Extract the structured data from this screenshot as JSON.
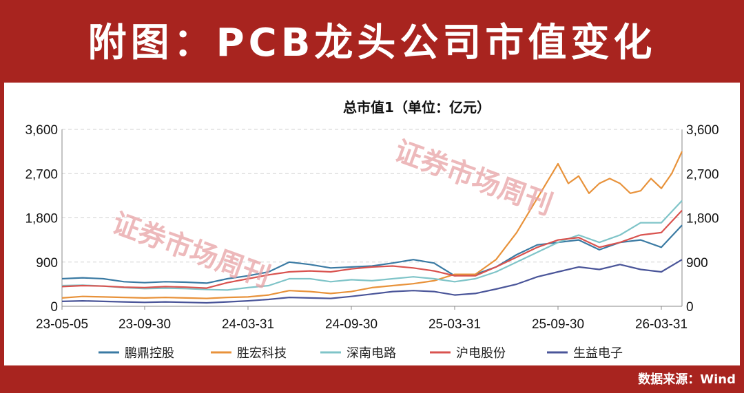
{
  "banner": {
    "title": "附图：PCB龙头公司市值变化"
  },
  "source": "数据来源：Wind",
  "watermark": "证券市场周刊",
  "colors": {
    "banner": "#a8241f",
    "鹏鼎控股": "#3a7aa3",
    "胜宏科技": "#e8923a",
    "深南电路": "#7fc4c8",
    "沪电股份": "#d9534f",
    "生益电子": "#4a5599"
  },
  "chart_data": {
    "type": "line",
    "title": "总市值1（单位：亿元）",
    "x_ticks": [
      "23-05-05",
      "23-09-30",
      "24-03-31",
      "24-09-30",
      "25-03-31",
      "25-09-30",
      "26-03-31"
    ],
    "x_tick_positions": [
      0,
      16,
      36,
      56,
      76,
      96,
      116
    ],
    "x_range": [
      0,
      120
    ],
    "y_ticks": [
      "0",
      "900",
      "1,800",
      "2,700",
      "3,600"
    ],
    "ylim": [
      0,
      3600
    ],
    "grid": "horizontal-dashed",
    "legend_position": "bottom",
    "series": [
      {
        "name": "鹏鼎控股",
        "x": [
          0,
          4,
          8,
          12,
          16,
          20,
          24,
          28,
          32,
          36,
          40,
          44,
          48,
          52,
          56,
          60,
          64,
          68,
          72,
          76,
          80,
          84,
          88,
          92,
          96,
          100,
          104,
          108,
          112,
          116,
          120
        ],
        "y": [
          560,
          580,
          560,
          500,
          480,
          500,
          490,
          470,
          560,
          620,
          700,
          900,
          850,
          780,
          800,
          820,
          880,
          950,
          880,
          620,
          650,
          800,
          1050,
          1250,
          1300,
          1350,
          1150,
          1300,
          1350,
          1200,
          1650
        ]
      },
      {
        "name": "胜宏科技",
        "x": [
          0,
          4,
          8,
          12,
          16,
          20,
          24,
          28,
          32,
          36,
          40,
          44,
          48,
          52,
          56,
          60,
          64,
          68,
          72,
          76,
          80,
          84,
          88,
          92,
          96,
          98,
          100,
          102,
          104,
          106,
          108,
          110,
          112,
          114,
          116,
          118,
          120
        ],
        "y": [
          170,
          200,
          190,
          180,
          170,
          180,
          170,
          160,
          180,
          190,
          230,
          320,
          300,
          260,
          300,
          380,
          420,
          460,
          520,
          650,
          650,
          950,
          1500,
          2200,
          2900,
          2500,
          2650,
          2300,
          2500,
          2600,
          2500,
          2300,
          2350,
          2600,
          2400,
          2700,
          3150
        ]
      },
      {
        "name": "深南电路",
        "x": [
          0,
          4,
          8,
          12,
          16,
          20,
          24,
          28,
          32,
          36,
          40,
          44,
          48,
          52,
          56,
          60,
          64,
          68,
          72,
          76,
          80,
          84,
          88,
          92,
          96,
          100,
          104,
          108,
          112,
          116,
          120
        ],
        "y": [
          420,
          430,
          410,
          380,
          360,
          370,
          360,
          340,
          330,
          380,
          420,
          560,
          560,
          500,
          540,
          520,
          560,
          600,
          560,
          500,
          560,
          700,
          900,
          1100,
          1300,
          1450,
          1300,
          1450,
          1700,
          1700,
          2150
        ]
      },
      {
        "name": "沪电股份",
        "x": [
          0,
          4,
          8,
          12,
          16,
          20,
          24,
          28,
          32,
          36,
          40,
          44,
          48,
          52,
          56,
          60,
          64,
          68,
          72,
          76,
          80,
          84,
          88,
          92,
          96,
          100,
          104,
          108,
          112,
          116,
          120
        ],
        "y": [
          400,
          420,
          410,
          390,
          380,
          400,
          390,
          370,
          480,
          560,
          640,
          700,
          720,
          700,
          760,
          800,
          820,
          780,
          720,
          620,
          620,
          800,
          1000,
          1200,
          1350,
          1400,
          1200,
          1300,
          1450,
          1500,
          1950
        ]
      },
      {
        "name": "生益电子",
        "x": [
          0,
          4,
          8,
          12,
          16,
          20,
          24,
          28,
          32,
          36,
          40,
          44,
          48,
          52,
          56,
          60,
          64,
          68,
          72,
          76,
          80,
          84,
          88,
          92,
          96,
          100,
          104,
          108,
          112,
          116,
          120
        ],
        "y": [
          100,
          110,
          100,
          90,
          80,
          90,
          80,
          70,
          90,
          110,
          140,
          180,
          170,
          160,
          200,
          250,
          300,
          320,
          300,
          230,
          260,
          350,
          450,
          600,
          700,
          800,
          750,
          850,
          750,
          700,
          950
        ]
      }
    ]
  }
}
